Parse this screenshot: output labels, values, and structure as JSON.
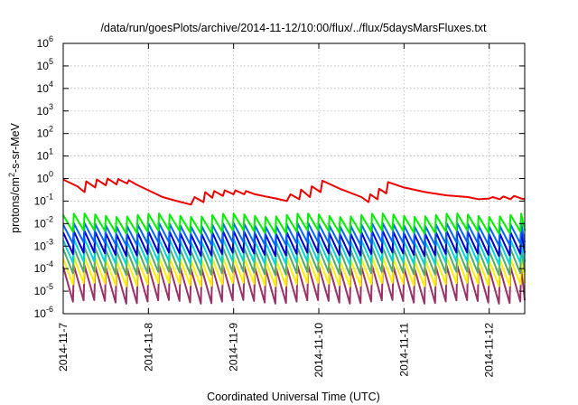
{
  "chart_data": {
    "type": "line",
    "title": "/data/run/goesPlots/archive/2014-11-12/10:00/flux/../flux/5daysMarsFluxes.txt",
    "xlabel": "Coordinated Universal Time (UTC)",
    "ylabel": "protons/cm²-s-sr-MeV",
    "ylabel_parts": {
      "base": "protons/cm",
      "sup": "2",
      "rest": "-s-sr-MeV"
    },
    "x_ticks": [
      "2014-11-7",
      "2014-11-8",
      "2014-11-9",
      "2014-11-10",
      "2014-11-11",
      "2014-11-12"
    ],
    "xlim": [
      "2014-11-07T00:00",
      "2014-11-12T10:00"
    ],
    "y_scale": "log",
    "ylim": [
      1e-06,
      1000000.0
    ],
    "y_ticks": [
      {
        "base": "10",
        "exp": "-6"
      },
      {
        "base": "10",
        "exp": "-5"
      },
      {
        "base": "10",
        "exp": "-4"
      },
      {
        "base": "10",
        "exp": "-3"
      },
      {
        "base": "10",
        "exp": "-2"
      },
      {
        "base": "10",
        "exp": "-1"
      },
      {
        "base": "10",
        "exp": "0"
      },
      {
        "base": "10",
        "exp": "1"
      },
      {
        "base": "10",
        "exp": "2"
      },
      {
        "base": "10",
        "exp": "3"
      },
      {
        "base": "10",
        "exp": "4"
      },
      {
        "base": "10",
        "exp": "5"
      },
      {
        "base": "10",
        "exp": "6"
      }
    ],
    "grid": true,
    "series": [
      {
        "color": "#ee0000",
        "x": [
          "2014-11-07T00:00",
          "2014-11-07T04:00",
          "2014-11-07T06:00",
          "2014-11-07T06:30",
          "2014-11-07T09:00",
          "2014-11-07T09:30",
          "2014-11-07T12:00",
          "2014-11-07T12:30",
          "2014-11-07T15:00",
          "2014-11-07T15:30",
          "2014-11-07T18:00",
          "2014-11-07T18:30",
          "2014-11-07T20:30",
          "2014-11-08T00:00",
          "2014-11-08T04:00",
          "2014-11-08T08:00",
          "2014-11-08T12:00",
          "2014-11-08T13:00",
          "2014-11-08T15:30",
          "2014-11-08T16:00",
          "2014-11-08T18:00",
          "2014-11-08T18:30",
          "2014-11-08T21:00",
          "2014-11-08T21:30",
          "2014-11-09T00:00",
          "2014-11-09T00:30",
          "2014-11-09T03:00",
          "2014-11-09T03:30",
          "2014-11-09T06:00",
          "2014-11-09T09:00",
          "2014-11-09T12:00",
          "2014-11-09T15:00",
          "2014-11-09T16:00",
          "2014-11-09T18:30",
          "2014-11-09T19:00",
          "2014-11-09T21:30",
          "2014-11-09T22:00",
          "2014-11-10T00:30",
          "2014-11-10T01:00",
          "2014-11-10T06:00",
          "2014-11-10T12:00",
          "2014-11-10T14:00",
          "2014-11-10T14:30",
          "2014-11-10T16:30",
          "2014-11-10T17:00",
          "2014-11-10T19:00",
          "2014-11-10T19:30",
          "2014-11-11T00:00",
          "2014-11-11T06:00",
          "2014-11-11T12:00",
          "2014-11-11T18:00",
          "2014-11-11T21:00",
          "2014-11-12T00:00",
          "2014-11-12T01:00",
          "2014-11-12T03:00",
          "2014-11-12T04:00",
          "2014-11-12T06:00",
          "2014-11-12T07:00",
          "2014-11-12T09:00",
          "2014-11-12T10:00"
        ],
        "y": [
          0.9,
          0.45,
          0.25,
          0.75,
          0.4,
          0.9,
          0.5,
          1.0,
          0.55,
          0.95,
          0.6,
          0.85,
          0.55,
          0.3,
          0.15,
          0.1,
          0.07,
          0.15,
          0.09,
          0.25,
          0.14,
          0.28,
          0.17,
          0.3,
          0.2,
          0.3,
          0.2,
          0.28,
          0.2,
          0.16,
          0.13,
          0.1,
          0.2,
          0.12,
          0.32,
          0.15,
          0.45,
          0.25,
          0.8,
          0.35,
          0.15,
          0.09,
          0.2,
          0.12,
          0.35,
          0.22,
          0.7,
          0.4,
          0.25,
          0.18,
          0.15,
          0.12,
          0.13,
          0.15,
          0.12,
          0.16,
          0.12,
          0.17,
          0.13,
          0.12
        ]
      },
      {
        "color": "#00ee00",
        "base": 0.024,
        "drop": 5.5
      },
      {
        "color": "#0066ff",
        "base": 0.009,
        "drop": 7
      },
      {
        "color": "#0000cc",
        "base": 0.004,
        "drop": 9
      },
      {
        "color": "#00d4d4",
        "base": 0.0018,
        "drop": 10
      },
      {
        "color": "#55aa66",
        "base": 0.00075,
        "drop": 12
      },
      {
        "color": "#ffee00",
        "base": 0.00028,
        "drop": 14
      },
      {
        "color": "#993366",
        "base": 0.00012,
        "drop": 35
      }
    ]
  }
}
